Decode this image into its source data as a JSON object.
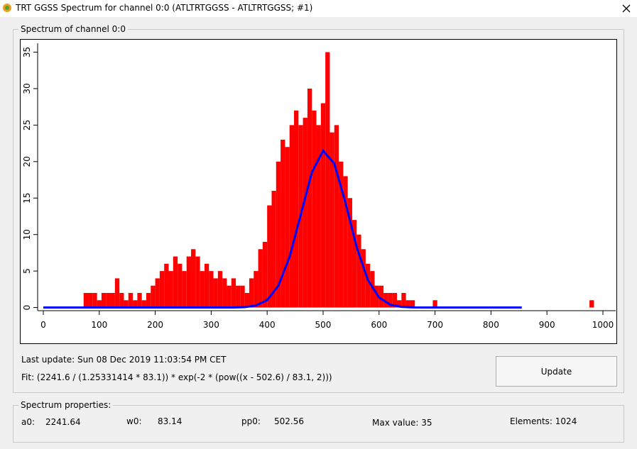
{
  "window": {
    "title": "TRT GGSS Spectrum for channel 0:0 (ATLTRTGGSS - ATLTRTGGSS; #1)"
  },
  "spectrum_group": {
    "title": "Spectrum of channel 0:0"
  },
  "chart_data": {
    "type": "histogram",
    "bins": [
      0,
      8,
      16,
      24,
      32,
      40,
      48,
      56,
      64,
      72,
      80,
      88,
      96,
      104,
      112,
      120,
      128,
      136,
      144,
      152,
      160,
      168,
      176,
      184,
      192,
      200,
      208,
      216,
      224,
      232,
      240,
      248,
      256,
      264,
      272,
      280,
      288,
      296,
      304,
      312,
      320,
      328,
      336,
      344,
      352,
      360,
      368,
      376,
      384,
      392,
      400,
      408,
      416,
      424,
      432,
      440,
      448,
      456,
      464,
      472,
      480,
      488,
      496,
      504,
      512,
      520,
      528,
      536,
      544,
      552,
      560,
      568,
      576,
      584,
      592,
      600,
      608,
      616,
      624,
      632,
      640,
      648,
      656,
      664,
      672,
      680,
      688,
      696,
      704,
      712,
      720,
      728,
      736,
      744,
      752,
      760,
      768,
      776,
      784,
      792,
      800,
      808,
      816,
      824,
      832,
      840,
      848,
      856,
      864,
      872,
      880,
      888,
      896,
      904,
      912,
      920,
      928,
      936,
      944,
      952,
      960,
      968,
      976,
      984,
      992,
      1000,
      1008,
      1016,
      1024
    ],
    "values": [
      0,
      0,
      0,
      0,
      0,
      0,
      0,
      0,
      0,
      2,
      2,
      2,
      1,
      2,
      2,
      2,
      4,
      2,
      1,
      2,
      1,
      2,
      1,
      2,
      3,
      4,
      5,
      6,
      5,
      7,
      6,
      5,
      7,
      8,
      7,
      5,
      6,
      5,
      4,
      5,
      4,
      3,
      4,
      3,
      3,
      2,
      4,
      5,
      8,
      9,
      14,
      16,
      20,
      23,
      22,
      25,
      27,
      25,
      26,
      30,
      27,
      25,
      28,
      35,
      24,
      25,
      20,
      18,
      15,
      12,
      10,
      8,
      6,
      5,
      3,
      3,
      2,
      2,
      2,
      1,
      2,
      1,
      1,
      0,
      0,
      0,
      0,
      1,
      0,
      0,
      0,
      0,
      0,
      0,
      0,
      0,
      0,
      0,
      0,
      0,
      0,
      0,
      0,
      0,
      0,
      0,
      0,
      0,
      0,
      0,
      0,
      0,
      0,
      0,
      0,
      0,
      0,
      0,
      0,
      0,
      0,
      0,
      1,
      0,
      0,
      0,
      0,
      0
    ],
    "color": "#ff0000",
    "fit": {
      "color": "#0000ff",
      "x": [
        0,
        100,
        200,
        300,
        320,
        340,
        360,
        380,
        400,
        420,
        440,
        460,
        480,
        500,
        520,
        540,
        560,
        580,
        600,
        620,
        640,
        660,
        680,
        700,
        800,
        855
      ],
      "y": [
        0,
        0,
        0,
        0,
        0,
        0.01,
        0.06,
        0.28,
        1.02,
        2.98,
        6.92,
        12.72,
        18.56,
        21.48,
        19.71,
        14.36,
        8.26,
        3.77,
        1.38,
        0.39,
        0.09,
        0.02,
        0,
        0,
        0,
        0
      ]
    },
    "xlim": [
      -40.6,
      1025.4
    ],
    "ylim": [
      -5,
      36.7
    ],
    "xticks": [
      0,
      100,
      200,
      300,
      400,
      500,
      600,
      700,
      800,
      900,
      1000
    ],
    "yticks": [
      0,
      5,
      10,
      15,
      20,
      25,
      30,
      35
    ]
  },
  "status": {
    "last_update": "Last update: Sun 08 Dec 2019 11:03:54 PM CET",
    "fit": "Fit: (2241.6 / (1.25331414 * 83.1)) * exp(-2 * (pow((x - 502.6) / 83.1, 2)))",
    "button": "Update"
  },
  "properties": {
    "title": "Spectrum properties:",
    "a0_label": "a0:",
    "a0": "2241.64",
    "w0_label": "w0:",
    "w0": "83.14",
    "pp0_label": "pp0:",
    "pp0": "502.56",
    "max_value": "Max value: 35",
    "elements": "Elements: 1024"
  }
}
